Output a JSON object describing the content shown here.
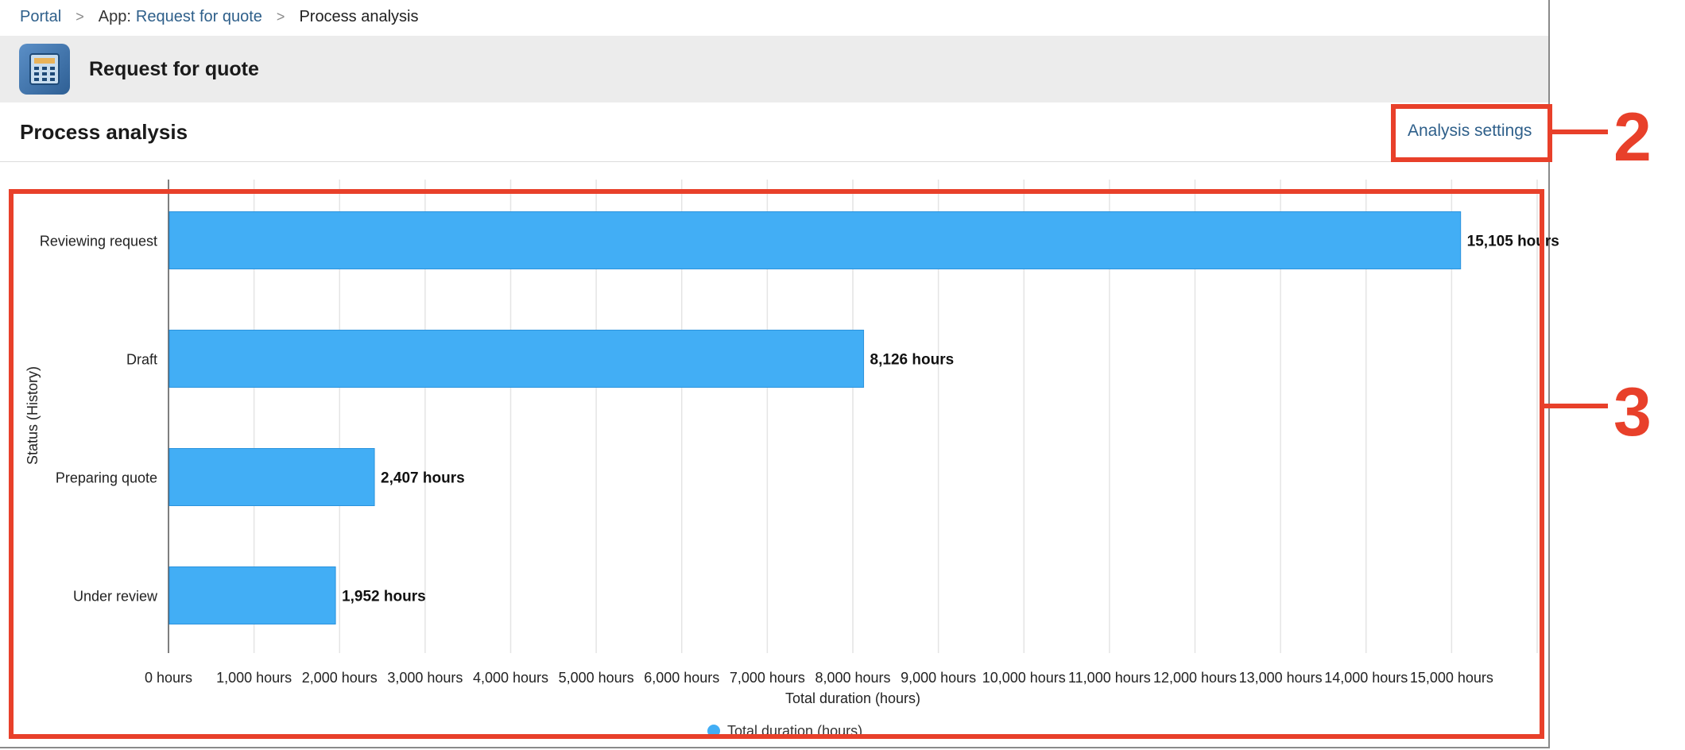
{
  "breadcrumb": {
    "portal": "Portal",
    "app_prefix": "App:",
    "app_name": "Request for quote",
    "current": "Process analysis",
    "separator": ">"
  },
  "app_header": {
    "title": "Request for quote",
    "icon": "calculator-icon"
  },
  "section": {
    "title": "Process analysis",
    "settings_label": "Analysis settings"
  },
  "callouts": {
    "settings_number": "2",
    "chart_number": "3",
    "color": "#e8402a"
  },
  "colors": {
    "bar": "#42aef5",
    "bar_stroke": "#2b93dd",
    "grid": "#e4e4e4",
    "link": "#2e5f8a"
  },
  "chart_data": {
    "type": "bar",
    "orientation": "horizontal",
    "categories": [
      "Reviewing request",
      "Draft",
      "Preparing quote",
      "Under review"
    ],
    "values": [
      15105,
      8126,
      2407,
      1952
    ],
    "value_labels": [
      "15,105 hours",
      "8,126 hours",
      "2,407 hours",
      "1,952 hours"
    ],
    "xlabel": "Total duration (hours)",
    "ylabel": "Status (History)",
    "xlim": [
      0,
      16000
    ],
    "xticks": [
      0,
      1000,
      2000,
      3000,
      4000,
      5000,
      6000,
      7000,
      8000,
      9000,
      10000,
      11000,
      12000,
      13000,
      14000,
      15000,
      16000
    ],
    "xtick_labels": [
      "0 hours",
      "1,000 hours",
      "2,000 hours",
      "3,000 hours",
      "4,000 hours",
      "5,000 hours",
      "6,000 hours",
      "7,000 hours",
      "8,000 hours",
      "9,000 hours",
      "10,000 hours",
      "11,000 hours",
      "12,000 hours",
      "13,000 hours",
      "14,000 hours",
      "15,000 hours",
      ""
    ],
    "legend": {
      "label": "Total duration (hours)",
      "placement": "bottom"
    },
    "grid": true
  }
}
